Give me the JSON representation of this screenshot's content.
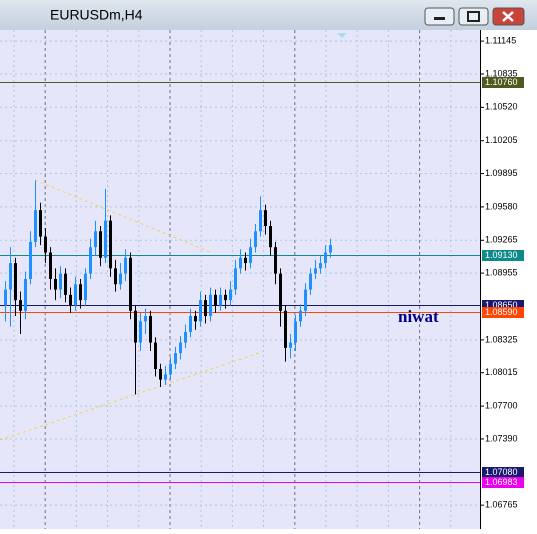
{
  "window_title": "EURUSDm,H4",
  "annotation": "niwat",
  "chart_data": {
    "type": "candlestick",
    "ylim": [
      1.0654,
      1.1125
    ],
    "yticks": [
      1.11145,
      {
        "value": 1.10835,
        "label": "1.10835"
      },
      {
        "value": 1.1052,
        "label": "1.10520"
      },
      1.10205,
      1.09895,
      {
        "value": 1.0958,
        "label": "1.09580"
      },
      1.09265,
      1.08955,
      1.08325,
      1.08015,
      {
        "value": 1.077,
        "label": "1.07700"
      },
      {
        "value": 1.0739,
        "label": "1.07390"
      },
      1.06765
    ],
    "up_color": "#1e90ff",
    "down_color": "#000000",
    "grid": true,
    "open": [
      1.0865,
      1.088,
      1.0905,
      1.087,
      1.086,
      1.089,
      1.0925,
      1.0955,
      1.093,
      1.0915,
      1.089,
      1.088,
      1.0895,
      1.0875,
      1.0865,
      1.0885,
      1.087,
      1.0895,
      1.092,
      1.0935,
      1.091,
      1.0945,
      1.09,
      1.0885,
      1.0895,
      1.091,
      1.086,
      1.083,
      1.085,
      1.0855,
      1.083,
      1.0805,
      1.0795,
      1.08,
      1.081,
      1.082,
      1.083,
      1.084,
      1.0855,
      1.085,
      1.087,
      1.0855,
      1.0875,
      1.0865,
      1.0875,
      1.087,
      1.088,
      1.09,
      1.091,
      1.0905,
      1.092,
      1.0935,
      1.0955,
      1.094,
      1.092,
      1.0895,
      1.086,
      1.0825,
      1.083,
      1.085,
      1.086,
      1.088,
      1.0895,
      1.09,
      1.0905,
      1.0915
    ],
    "high": [
      1.0888,
      1.092,
      1.091,
      1.0878,
      1.0897,
      1.0935,
      1.0983,
      1.0962,
      1.0938,
      1.092,
      1.09,
      1.0902,
      1.09,
      1.0882,
      1.0892,
      1.089,
      1.09,
      1.0928,
      1.0945,
      1.094,
      1.0975,
      1.095,
      1.0908,
      1.0905,
      1.0918,
      1.0915,
      1.0865,
      1.0858,
      1.0862,
      1.086,
      1.0835,
      1.081,
      1.0808,
      1.0816,
      1.0826,
      1.0836,
      1.0847,
      1.0862,
      1.086,
      1.0878,
      1.0875,
      1.0882,
      1.088,
      1.0882,
      1.088,
      1.0888,
      1.0908,
      1.0918,
      1.0915,
      1.0928,
      1.0942,
      1.0968,
      1.096,
      1.0945,
      1.0925,
      1.09,
      1.0865,
      1.0838,
      1.0856,
      1.0866,
      1.0886,
      1.09,
      1.0908,
      1.0912,
      1.0922,
      1.0928
    ],
    "low": [
      1.085,
      1.0845,
      1.0855,
      1.0838,
      1.0852,
      1.0885,
      1.092,
      1.0922,
      1.0905,
      1.088,
      1.087,
      1.0872,
      1.0868,
      1.0858,
      1.086,
      1.0862,
      1.0865,
      1.089,
      1.0912,
      1.0902,
      1.0905,
      1.0892,
      1.0878,
      1.088,
      1.0888,
      1.0852,
      1.0781,
      1.0822,
      1.0838,
      1.0822,
      1.0798,
      1.0788,
      1.079,
      1.0795,
      1.0805,
      1.0814,
      1.0825,
      1.0835,
      1.0842,
      1.0845,
      1.0848,
      1.085,
      1.0858,
      1.086,
      1.0862,
      1.0865,
      1.0875,
      1.0895,
      1.0898,
      1.09,
      1.0915,
      1.093,
      1.0932,
      1.0912,
      1.0885,
      1.0845,
      1.0812,
      1.0815,
      1.0822,
      1.0845,
      1.0855,
      1.0875,
      1.089,
      1.0895,
      1.09,
      1.091
    ],
    "close": [
      1.088,
      1.0905,
      1.087,
      1.086,
      1.089,
      1.0925,
      1.0955,
      1.093,
      1.0915,
      1.089,
      1.088,
      1.0895,
      1.0875,
      1.0865,
      1.0885,
      1.087,
      1.0895,
      1.092,
      1.0935,
      1.091,
      1.0945,
      1.09,
      1.0885,
      1.0895,
      1.091,
      1.086,
      1.083,
      1.085,
      1.0855,
      1.083,
      1.0805,
      1.0795,
      1.08,
      1.081,
      1.082,
      1.083,
      1.084,
      1.0855,
      1.085,
      1.087,
      1.0855,
      1.0875,
      1.0865,
      1.0875,
      1.087,
      1.088,
      1.09,
      1.091,
      1.0905,
      1.092,
      1.0935,
      1.0955,
      1.094,
      1.092,
      1.0895,
      1.086,
      1.0825,
      1.083,
      1.085,
      1.086,
      1.088,
      1.0895,
      1.09,
      1.0905,
      1.0915,
      1.0922
    ],
    "levels": [
      {
        "value": 1.1076,
        "label": "1.10760",
        "color": "#4f5a1e"
      },
      {
        "value": 1.0913,
        "label": "1.09130",
        "color": "#0f8a8a"
      },
      {
        "value": 1.0865,
        "label": "1.08650",
        "color": "#191970"
      },
      {
        "value": 1.0859,
        "label": "1.08590",
        "color": "#ff4500"
      },
      {
        "value": 1.0708,
        "label": "1.07080",
        "color": "#191970"
      },
      {
        "value": 1.06983,
        "label": "1.06983",
        "color": "#ee00ee"
      }
    ]
  }
}
